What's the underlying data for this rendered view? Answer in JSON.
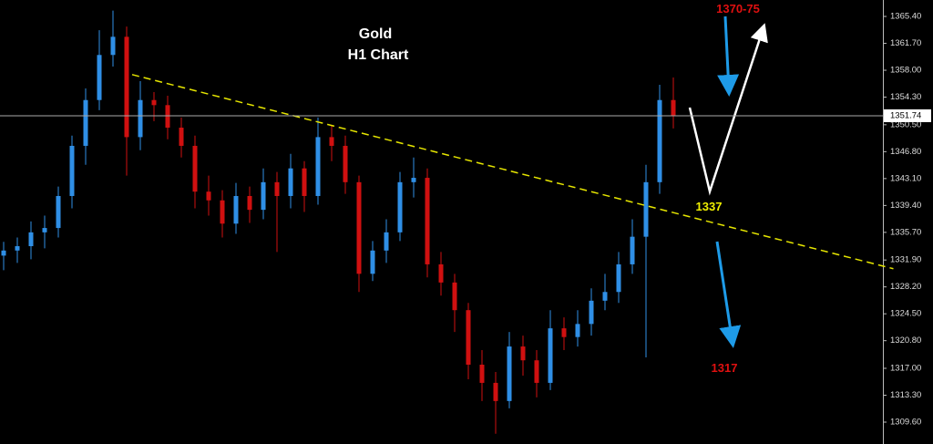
{
  "chart_data": {
    "type": "candlestick",
    "title": "Gold",
    "subtitle": "H1 Chart",
    "annotations": [
      "1370-75",
      "1337",
      "1317"
    ],
    "up_color": "#2f8fe6",
    "down_color": "#d01010",
    "open": [
      1332.5,
      1333.2,
      1333.8,
      1335.7,
      1336.3,
      1340.7,
      1347.6,
      1353.9,
      1360.1,
      1362.6,
      1348.8,
      1353.9,
      1353.2,
      1350.1,
      1347.6,
      1341.3,
      1340.1,
      1336.9,
      1340.7,
      1338.8,
      1342.6,
      1340.7,
      1344.5,
      1340.7,
      1348.8,
      1347.6,
      1342.6,
      1330.0,
      1333.2,
      1335.7,
      1342.6,
      1343.2,
      1331.3,
      1328.8,
      1325.0,
      1317.5,
      1315.0,
      1312.5,
      1320.0,
      1318.1,
      1315.0,
      1322.5,
      1321.3,
      1323.1,
      1326.3,
      1327.5,
      1331.3,
      1335.1,
      1342.6,
      1353.9
    ],
    "high": [
      1334.4,
      1335.0,
      1337.2,
      1338.0,
      1342.0,
      1349.0,
      1355.5,
      1363.5,
      1366.2,
      1364.0,
      1356.5,
      1355.0,
      1354.5,
      1351.5,
      1349.0,
      1343.5,
      1341.5,
      1342.5,
      1342.0,
      1344.5,
      1344.0,
      1346.5,
      1345.5,
      1351.5,
      1350.5,
      1349.0,
      1343.5,
      1334.5,
      1337.5,
      1344.0,
      1346.0,
      1344.5,
      1333.0,
      1330.0,
      1326.0,
      1319.5,
      1316.5,
      1322.0,
      1321.5,
      1319.5,
      1325.0,
      1324.0,
      1325.0,
      1328.0,
      1330.0,
      1333.0,
      1337.5,
      1345.0,
      1356.0,
      1357.0
    ],
    "low": [
      1330.5,
      1331.5,
      1332.0,
      1333.5,
      1335.0,
      1339.0,
      1345.0,
      1352.5,
      1358.5,
      1343.5,
      1347.0,
      1351.0,
      1348.5,
      1346.0,
      1339.0,
      1338.0,
      1335.0,
      1335.5,
      1337.0,
      1337.5,
      1333.0,
      1339.0,
      1338.5,
      1339.5,
      1345.5,
      1341.0,
      1327.5,
      1329.0,
      1331.5,
      1334.5,
      1340.5,
      1329.5,
      1327.0,
      1322.0,
      1315.5,
      1312.5,
      1308.0,
      1311.5,
      1316.0,
      1313.0,
      1314.0,
      1319.5,
      1320.0,
      1321.5,
      1325.0,
      1326.0,
      1330.0,
      1318.5,
      1341.0,
      1350.0
    ],
    "close": [
      1333.2,
      1333.8,
      1335.7,
      1336.3,
      1340.7,
      1347.6,
      1353.9,
      1360.1,
      1362.6,
      1348.8,
      1353.9,
      1353.2,
      1350.1,
      1347.6,
      1341.3,
      1340.1,
      1336.9,
      1340.7,
      1338.8,
      1342.6,
      1340.7,
      1344.5,
      1340.7,
      1348.8,
      1347.6,
      1342.6,
      1330.0,
      1333.2,
      1335.7,
      1342.6,
      1343.2,
      1331.3,
      1328.8,
      1325.0,
      1317.5,
      1315.0,
      1312.5,
      1320.0,
      1318.1,
      1315.0,
      1322.5,
      1321.3,
      1323.1,
      1326.3,
      1327.5,
      1331.3,
      1335.1,
      1342.6,
      1353.9,
      1351.7
    ],
    "last_price": {
      "value": 1351.74,
      "label": "1351.74"
    },
    "trendline": {
      "x": [
        9.4,
        65.1
      ],
      "y": [
        1357.4,
        1330.7
      ],
      "color": "#e6e600"
    },
    "ylim": [
      1306.59,
      1367.66
    ],
    "yticks": [
      {
        "value": 1309.6,
        "label": "1309.60"
      },
      {
        "value": 1313.3,
        "label": "1313.30"
      },
      {
        "value": 1317.0,
        "label": "1317.00"
      },
      {
        "value": 1320.8,
        "label": "1320.80"
      },
      {
        "value": 1324.5,
        "label": "1324.50"
      },
      {
        "value": 1328.2,
        "label": "1328.20"
      },
      {
        "value": 1331.9,
        "label": "1331.90"
      },
      {
        "value": 1335.7,
        "label": "1335.70"
      },
      {
        "value": 1339.4,
        "label": "1339.40"
      },
      {
        "value": 1343.1,
        "label": "1343.10"
      },
      {
        "value": 1346.8,
        "label": "1346.80"
      },
      {
        "value": 1350.5,
        "label": "1350.50"
      },
      {
        "value": 1354.3,
        "label": "1354.30"
      },
      {
        "value": 1358.0,
        "label": "1358.00"
      },
      {
        "value": 1361.7,
        "label": "1361.70"
      },
      {
        "value": 1365.4,
        "label": "1365.40"
      }
    ]
  }
}
